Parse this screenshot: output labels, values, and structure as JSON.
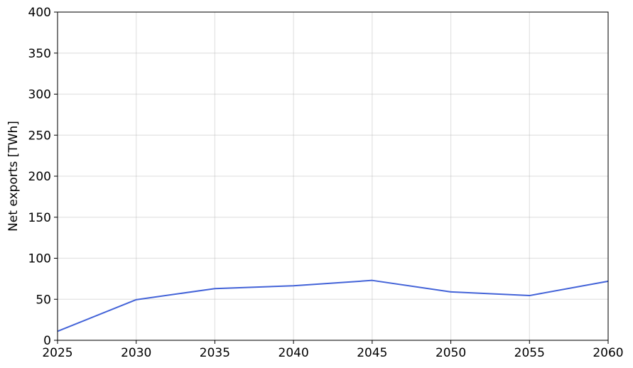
{
  "chart_data": {
    "type": "line",
    "title": "",
    "xlabel": "",
    "ylabel": "Net exports [TWh]",
    "xlim": [
      2025,
      2060
    ],
    "ylim": [
      0,
      400
    ],
    "x_ticks": [
      "2025",
      "2030",
      "2035",
      "2040",
      "2045",
      "2050",
      "2055",
      "2060"
    ],
    "y_ticks": [
      "0",
      "50",
      "100",
      "150",
      "200",
      "250",
      "300",
      "350",
      "400"
    ],
    "grid": true,
    "series": [
      {
        "color": "#4363d8",
        "x": [
          2025,
          2030,
          2035,
          2040,
          2045,
          2050,
          2055,
          2060
        ],
        "y": [
          11,
          49.5,
          63,
          66.5,
          73,
          59,
          54.5,
          72
        ]
      }
    ]
  }
}
